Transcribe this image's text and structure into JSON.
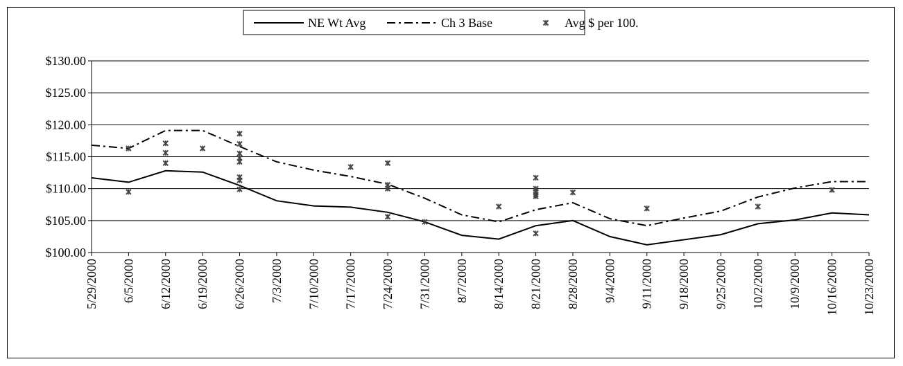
{
  "chart_data": {
    "type": "line",
    "categories": [
      "5/29/2000",
      "6/5/2000",
      "6/12/2000",
      "6/19/2000",
      "6/26/2000",
      "7/3/2000",
      "7/10/2000",
      "7/17/2000",
      "7/24/2000",
      "7/31/2000",
      "8/7/2000",
      "8/14/2000",
      "8/21/2000",
      "8/28/2000",
      "9/4/2000",
      "9/11/2000",
      "9/18/2000",
      "9/25/2000",
      "10/2/2000",
      "10/9/2000",
      "10/16/2000",
      "10/23/2000"
    ],
    "y_ticks": [
      "$100.00",
      "$105.00",
      "$110.00",
      "$115.00",
      "$120.00",
      "$125.00",
      "$130.00"
    ],
    "ylim": [
      100,
      130
    ],
    "grid": true,
    "legend_position": "top-center",
    "series": [
      {
        "name": "NE Wt Avg",
        "style": "solid",
        "values": [
          111.7,
          111.0,
          112.8,
          112.6,
          110.5,
          108.1,
          107.3,
          107.1,
          106.3,
          104.8,
          102.7,
          102.1,
          104.2,
          105.0,
          102.5,
          101.2,
          102.0,
          102.8,
          104.5,
          105.1,
          106.2,
          105.9
        ]
      },
      {
        "name": "Ch 3 Base",
        "style": "dash-dot",
        "values": [
          116.8,
          116.3,
          119.1,
          119.1,
          116.6,
          114.2,
          112.9,
          111.9,
          110.7,
          108.5,
          105.9,
          104.8,
          106.7,
          107.8,
          105.3,
          104.2,
          105.4,
          106.5,
          108.7,
          110.1,
          111.1,
          111.1
        ]
      },
      {
        "name": "Avg $ per 100.",
        "style": "markers",
        "points": [
          {
            "x": "6/5/2000",
            "y": 116.3
          },
          {
            "x": "6/5/2000",
            "y": 109.5
          },
          {
            "x": "6/12/2000",
            "y": 117.1
          },
          {
            "x": "6/12/2000",
            "y": 115.6
          },
          {
            "x": "6/12/2000",
            "y": 114.0
          },
          {
            "x": "6/19/2000",
            "y": 116.3
          },
          {
            "x": "6/26/2000",
            "y": 118.6
          },
          {
            "x": "6/26/2000",
            "y": 117.0
          },
          {
            "x": "6/26/2000",
            "y": 115.5
          },
          {
            "x": "6/26/2000",
            "y": 114.8
          },
          {
            "x": "6/26/2000",
            "y": 114.2
          },
          {
            "x": "6/26/2000",
            "y": 111.8
          },
          {
            "x": "6/26/2000",
            "y": 111.3
          },
          {
            "x": "6/26/2000",
            "y": 109.9
          },
          {
            "x": "7/17/2000",
            "y": 113.4
          },
          {
            "x": "7/24/2000",
            "y": 114.0
          },
          {
            "x": "7/24/2000",
            "y": 110.6
          },
          {
            "x": "7/24/2000",
            "y": 110.0
          },
          {
            "x": "7/24/2000",
            "y": 105.6
          },
          {
            "x": "7/31/2000",
            "y": 104.8
          },
          {
            "x": "8/14/2000",
            "y": 107.2
          },
          {
            "x": "8/21/2000",
            "y": 111.7
          },
          {
            "x": "8/21/2000",
            "y": 110.0
          },
          {
            "x": "8/21/2000",
            "y": 109.5
          },
          {
            "x": "8/21/2000",
            "y": 109.1
          },
          {
            "x": "8/21/2000",
            "y": 108.8
          },
          {
            "x": "8/21/2000",
            "y": 103.0
          },
          {
            "x": "8/28/2000",
            "y": 109.4
          },
          {
            "x": "9/11/2000",
            "y": 106.9
          },
          {
            "x": "10/2/2000",
            "y": 107.2
          },
          {
            "x": "10/16/2000",
            "y": 109.8
          }
        ]
      }
    ]
  }
}
